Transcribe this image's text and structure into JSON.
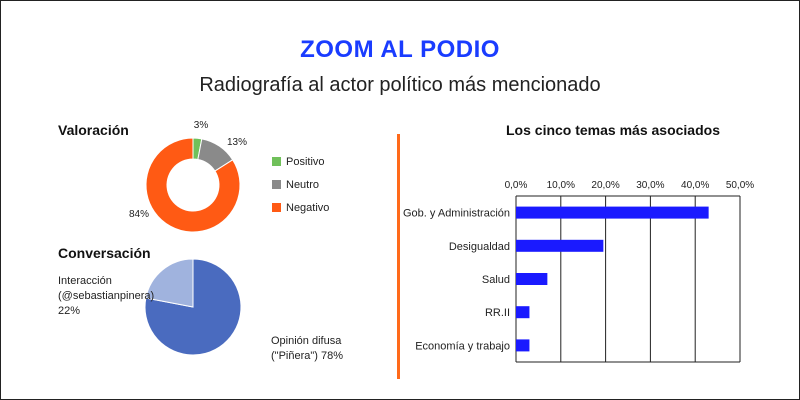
{
  "header": {
    "title": "ZOOM AL PODIO",
    "subtitle": "Radiografía al actor político más mencionado"
  },
  "valoracion": {
    "label": "Valoración",
    "legend": [
      {
        "name": "Positivo",
        "color": "#70c05a"
      },
      {
        "name": "Neutro",
        "color": "#8a8a8a"
      },
      {
        "name": "Negativo",
        "color": "#ff5a14"
      }
    ]
  },
  "conversacion": {
    "label": "Conversación",
    "interaccion_label": [
      "Interacción",
      "(@sebastianpinera)",
      "22%"
    ],
    "opinion_label": [
      "Opinión difusa",
      "(\"Piñera\") 78%"
    ]
  },
  "temas": {
    "label": "Los cinco temas más asociados"
  },
  "chart_data": [
    {
      "type": "pie",
      "variant": "donut",
      "title": "Valoración",
      "categories": [
        "Positivo",
        "Neutro",
        "Negativo"
      ],
      "values": [
        3,
        13,
        84
      ],
      "value_labels": [
        "3%",
        "13%",
        "84%"
      ],
      "colors": [
        "#70c05a",
        "#8a8a8a",
        "#ff5a14"
      ],
      "legend": "right"
    },
    {
      "type": "pie",
      "title": "Conversación",
      "categories": [
        "Opinión difusa (\"Piñera\")",
        "Interacción (@sebastianpinera)"
      ],
      "values": [
        78,
        22
      ],
      "colors": [
        "#4a6bbf",
        "#a0b3de"
      ]
    },
    {
      "type": "bar",
      "orientation": "horizontal",
      "title": "Los cinco temas más asociados",
      "categories": [
        "Gob. y Administración",
        "Desigualdad",
        "Salud",
        "RR.II",
        "Economía y trabajo"
      ],
      "values": [
        43,
        19.5,
        7,
        3,
        3
      ],
      "xlim": [
        0,
        50
      ],
      "xticks": [
        "0,0%",
        "10,0%",
        "20,0%",
        "30,0%",
        "40,0%",
        "50,0%"
      ],
      "bar_color": "#1a1aff",
      "grid": "vertical",
      "axis_position": "top"
    }
  ]
}
